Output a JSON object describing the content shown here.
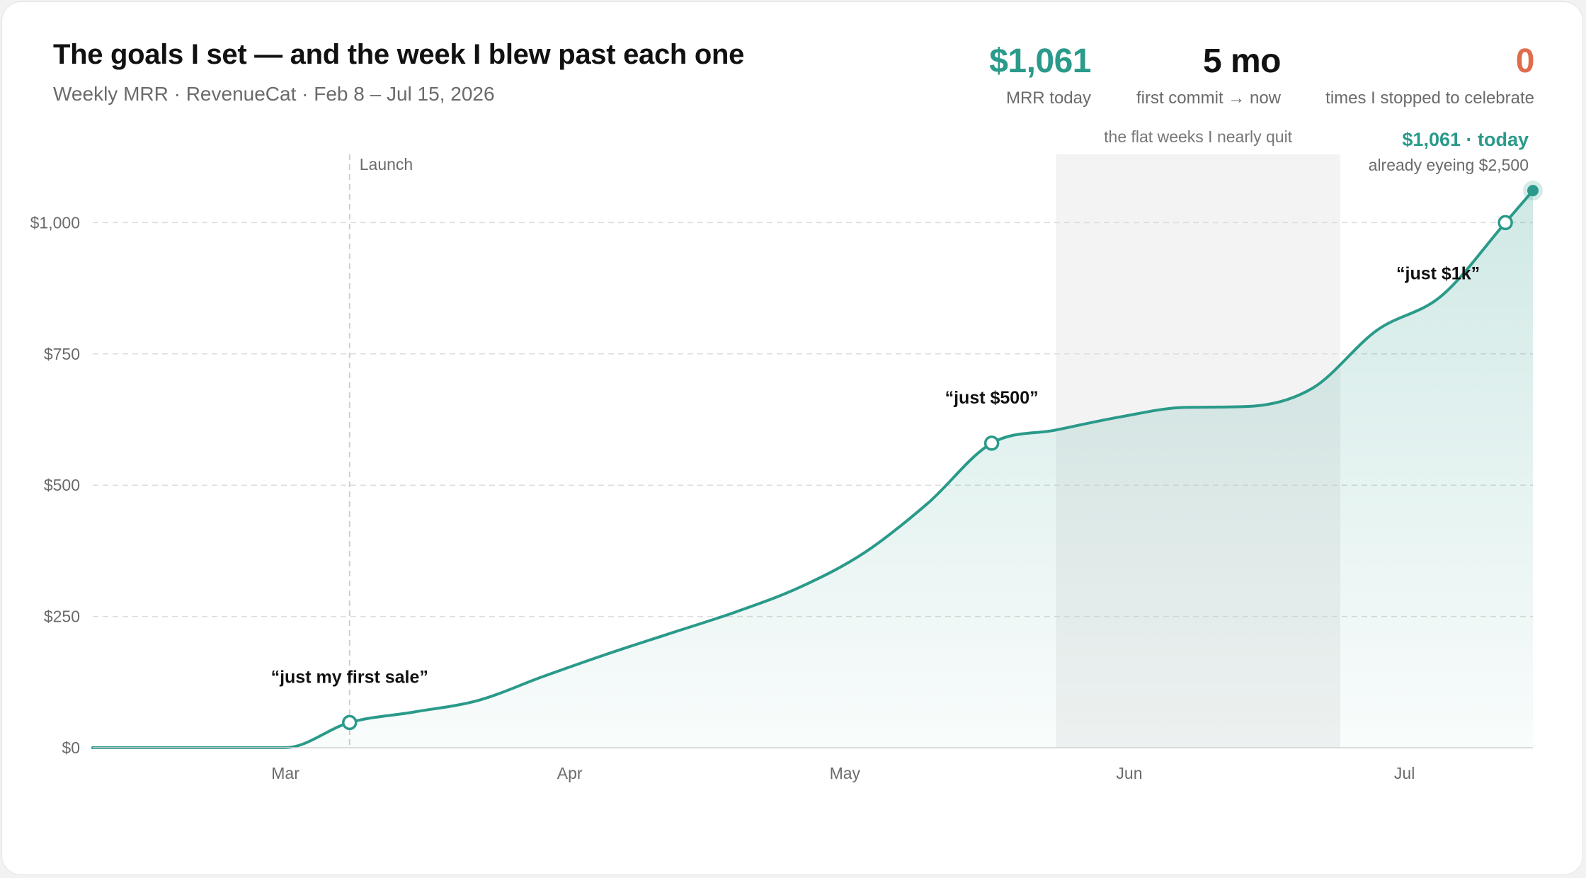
{
  "header": {
    "title": "The goals I set — and the week I blew past each one",
    "subtitle": "Weekly MRR · RevenueCat · Feb 8 – Jul 15, 2026"
  },
  "kpis": [
    {
      "value": "$1,061",
      "label": "MRR today",
      "color": "#2a9a8a"
    },
    {
      "value": "5 mo",
      "label": "first commit → now",
      "color": "#111111"
    },
    {
      "value": "0",
      "label": "times I stopped to celebrate",
      "color": "#e06c4e"
    }
  ],
  "chart_data": {
    "type": "area",
    "title": "The goals I set — and the week I blew past each one",
    "subtitle": "Weekly MRR · RevenueCat · Feb 8 – Jul 15, 2026",
    "xlabel": "",
    "ylabel": "",
    "ylim": [
      0,
      1130
    ],
    "xlim": [
      "2026-02-08",
      "2026-07-15"
    ],
    "y_ticks": [
      {
        "value": 0,
        "label": "$0"
      },
      {
        "value": 250,
        "label": "$250"
      },
      {
        "value": 500,
        "label": "$500"
      },
      {
        "value": 750,
        "label": "$750"
      },
      {
        "value": 1000,
        "label": "$1,000"
      }
    ],
    "x_ticks": [
      {
        "date": "2026-03-01",
        "label": "Mar"
      },
      {
        "date": "2026-04-01",
        "label": "Apr"
      },
      {
        "date": "2026-05-01",
        "label": "May"
      },
      {
        "date": "2026-06-01",
        "label": "Jun"
      },
      {
        "date": "2026-07-01",
        "label": "Jul"
      }
    ],
    "grid": true,
    "series": [
      {
        "color": "#2a9a8a",
        "points": [
          {
            "date": "2026-02-08",
            "value": 0
          },
          {
            "date": "2026-02-15",
            "value": 0
          },
          {
            "date": "2026-02-22",
            "value": 0
          },
          {
            "date": "2026-03-01",
            "value": 0
          },
          {
            "date": "2026-03-08",
            "value": 48
          },
          {
            "date": "2026-03-15",
            "value": 68
          },
          {
            "date": "2026-03-22",
            "value": 90
          },
          {
            "date": "2026-03-29",
            "value": 135
          },
          {
            "date": "2026-04-05",
            "value": 178
          },
          {
            "date": "2026-04-12",
            "value": 218
          },
          {
            "date": "2026-04-19",
            "value": 258
          },
          {
            "date": "2026-04-26",
            "value": 305
          },
          {
            "date": "2026-05-03",
            "value": 370
          },
          {
            "date": "2026-05-10",
            "value": 465
          },
          {
            "date": "2026-05-17",
            "value": 580
          },
          {
            "date": "2026-05-24",
            "value": 605
          },
          {
            "date": "2026-05-31",
            "value": 630
          },
          {
            "date": "2026-06-07",
            "value": 648
          },
          {
            "date": "2026-06-14",
            "value": 650
          },
          {
            "date": "2026-06-21",
            "value": 685
          },
          {
            "date": "2026-06-28",
            "value": 795
          },
          {
            "date": "2026-07-05",
            "value": 860
          },
          {
            "date": "2026-07-12",
            "value": 990
          },
          {
            "date": "2026-07-12",
            "value": 1000
          },
          {
            "date": "2026-07-15",
            "value": 1061
          }
        ]
      }
    ],
    "launch": {
      "date": "2026-03-08",
      "label": "Launch"
    },
    "shaded_region": {
      "start": "2026-05-24",
      "end": "2026-06-24",
      "label": "the flat weeks I nearly quit"
    },
    "milestones": [
      {
        "date": "2026-03-08",
        "value": 48,
        "label": "“just my first sale”",
        "label_position": "above"
      },
      {
        "date": "2026-05-17",
        "value": 580,
        "label": "“just $500”",
        "label_position": "above"
      },
      {
        "date": "2026-07-12",
        "value": 1000,
        "label": "“just $1k”",
        "label_position": "below-left"
      }
    ],
    "current": {
      "date": "2026-07-15",
      "value": 1061,
      "label": "$1,061 · today",
      "sublabel": "already eyeing $2,500"
    }
  }
}
